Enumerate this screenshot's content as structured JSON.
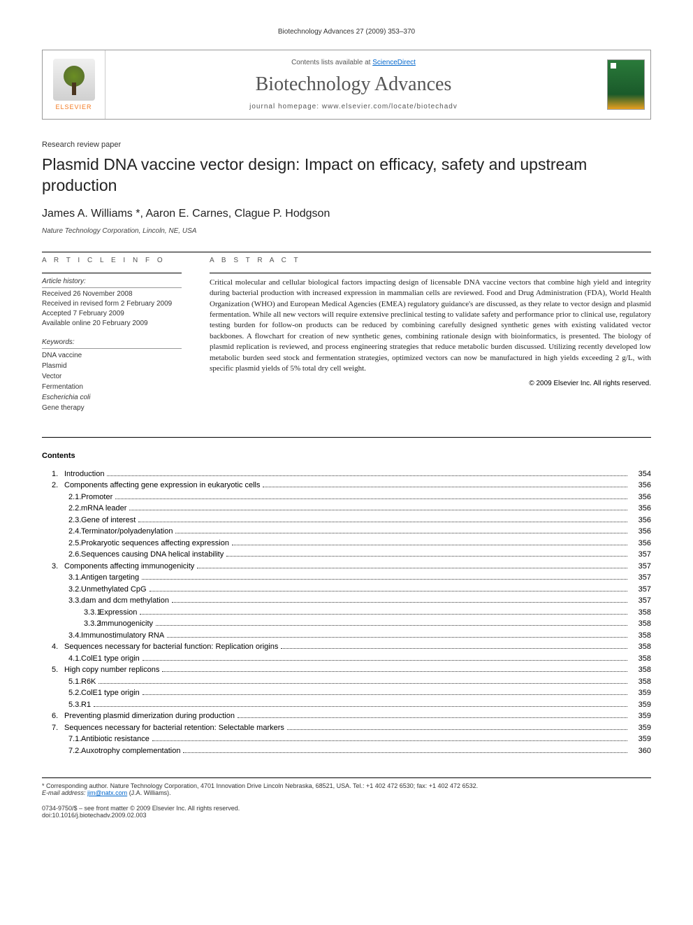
{
  "running_header": "Biotechnology Advances 27 (2009) 353–370",
  "publisher": {
    "name": "ELSEVIER",
    "contents_prefix": "Contents lists available at ",
    "contents_link": "ScienceDirect",
    "journal_name": "Biotechnology Advances",
    "homepage_label": "journal homepage: ",
    "homepage_url": "www.elsevier.com/locate/biotechadv"
  },
  "article": {
    "type": "Research review paper",
    "title": "Plasmid DNA vaccine vector design: Impact on efficacy, safety and upstream production",
    "authors": "James A. Williams *, Aaron E. Carnes, Clague P. Hodgson",
    "affiliation": "Nature Technology Corporation, Lincoln, NE, USA"
  },
  "info": {
    "heading": "A R T I C L E   I N F O",
    "history_label": "Article history:",
    "history": [
      "Received 26 November 2008",
      "Received in revised form 2 February 2009",
      "Accepted 7 February 2009",
      "Available online 20 February 2009"
    ],
    "keywords_label": "Keywords:",
    "keywords": [
      {
        "text": "DNA vaccine",
        "italic": false
      },
      {
        "text": "Plasmid",
        "italic": false
      },
      {
        "text": "Vector",
        "italic": false
      },
      {
        "text": "Fermentation",
        "italic": false
      },
      {
        "text": "Escherichia coli",
        "italic": true
      },
      {
        "text": "Gene therapy",
        "italic": false
      }
    ]
  },
  "abstract": {
    "heading": "A B S T R A C T",
    "text": "Critical molecular and cellular biological factors impacting design of licensable DNA vaccine vectors that combine high yield and integrity during bacterial production with increased expression in mammalian cells are reviewed. Food and Drug Administration (FDA), World Health Organization (WHO) and European Medical Agencies (EMEA) regulatory guidance's are discussed, as they relate to vector design and plasmid fermentation. While all new vectors will require extensive preclinical testing to validate safety and performance prior to clinical use, regulatory testing burden for follow-on products can be reduced by combining carefully designed synthetic genes with existing validated vector backbones. A flowchart for creation of new synthetic genes, combining rationale design with bioinformatics, is presented. The biology of plasmid replication is reviewed, and process engineering strategies that reduce metabolic burden discussed. Utilizing recently developed low metabolic burden seed stock and fermentation strategies, optimized vectors can now be manufactured in high yields exceeding 2 g/L, with specific plasmid yields of 5% total dry cell weight.",
    "copyright": "© 2009 Elsevier Inc. All rights reserved."
  },
  "contents": {
    "title": "Contents",
    "items": [
      {
        "level": 1,
        "num": "1.",
        "label": "Introduction",
        "page": "354"
      },
      {
        "level": 1,
        "num": "2.",
        "label": "Components affecting gene expression in eukaryotic cells",
        "page": "356"
      },
      {
        "level": 2,
        "num": "2.1.",
        "label": "Promoter",
        "page": "356"
      },
      {
        "level": 2,
        "num": "2.2.",
        "label": "mRNA leader",
        "page": "356"
      },
      {
        "level": 2,
        "num": "2.3.",
        "label": "Gene of interest",
        "page": "356"
      },
      {
        "level": 2,
        "num": "2.4.",
        "label": "Terminator/polyadenylation",
        "page": "356"
      },
      {
        "level": 2,
        "num": "2.5.",
        "label": "Prokaryotic sequences affecting expression",
        "page": "356"
      },
      {
        "level": 2,
        "num": "2.6.",
        "label": "Sequences causing DNA helical instability",
        "page": "357"
      },
      {
        "level": 1,
        "num": "3.",
        "label": "Components affecting immunogenicity",
        "page": "357"
      },
      {
        "level": 2,
        "num": "3.1.",
        "label": "Antigen targeting",
        "page": "357"
      },
      {
        "level": 2,
        "num": "3.2.",
        "label": "Unmethylated CpG",
        "page": "357"
      },
      {
        "level": 2,
        "num": "3.3.",
        "label": "dam and dcm methylation",
        "page": "357"
      },
      {
        "level": 3,
        "num": "3.3.1.",
        "label": "Expression",
        "page": "358"
      },
      {
        "level": 3,
        "num": "3.3.2.",
        "label": "Immunogenicity",
        "page": "358"
      },
      {
        "level": 2,
        "num": "3.4.",
        "label": "Immunostimulatory RNA",
        "page": "358"
      },
      {
        "level": 1,
        "num": "4.",
        "label": "Sequences necessary for bacterial function: Replication origins",
        "page": "358"
      },
      {
        "level": 2,
        "num": "4.1.",
        "label": "ColE1 type origin",
        "page": "358"
      },
      {
        "level": 1,
        "num": "5.",
        "label": "High copy number replicons",
        "page": "358"
      },
      {
        "level": 2,
        "num": "5.1.",
        "label": "R6K",
        "page": "358"
      },
      {
        "level": 2,
        "num": "5.2.",
        "label": "ColE1 type origin",
        "page": "359"
      },
      {
        "level": 2,
        "num": "5.3.",
        "label": "R1",
        "page": "359"
      },
      {
        "level": 1,
        "num": "6.",
        "label": "Preventing plasmid dimerization during production",
        "page": "359"
      },
      {
        "level": 1,
        "num": "7.",
        "label": "Sequences necessary for bacterial retention: Selectable markers",
        "page": "359"
      },
      {
        "level": 2,
        "num": "7.1.",
        "label": "Antibiotic resistance",
        "page": "359"
      },
      {
        "level": 2,
        "num": "7.2.",
        "label": "Auxotrophy complementation",
        "page": "360"
      }
    ]
  },
  "footnotes": {
    "corresponding": "* Corresponding author. Nature Technology Corporation, 4701 Innovation Drive Lincoln Nebraska, 68521, USA. Tel.: +1 402 472 6530; fax: +1 402 472 6532.",
    "email_label": "E-mail address: ",
    "email": "jim@natx.com",
    "email_suffix": " (J.A. Williams)."
  },
  "bottom": {
    "issn": "0734-9750/$ – see front matter © 2009 Elsevier Inc. All rights reserved.",
    "doi": "doi:10.1016/j.biotechadv.2009.02.003"
  }
}
